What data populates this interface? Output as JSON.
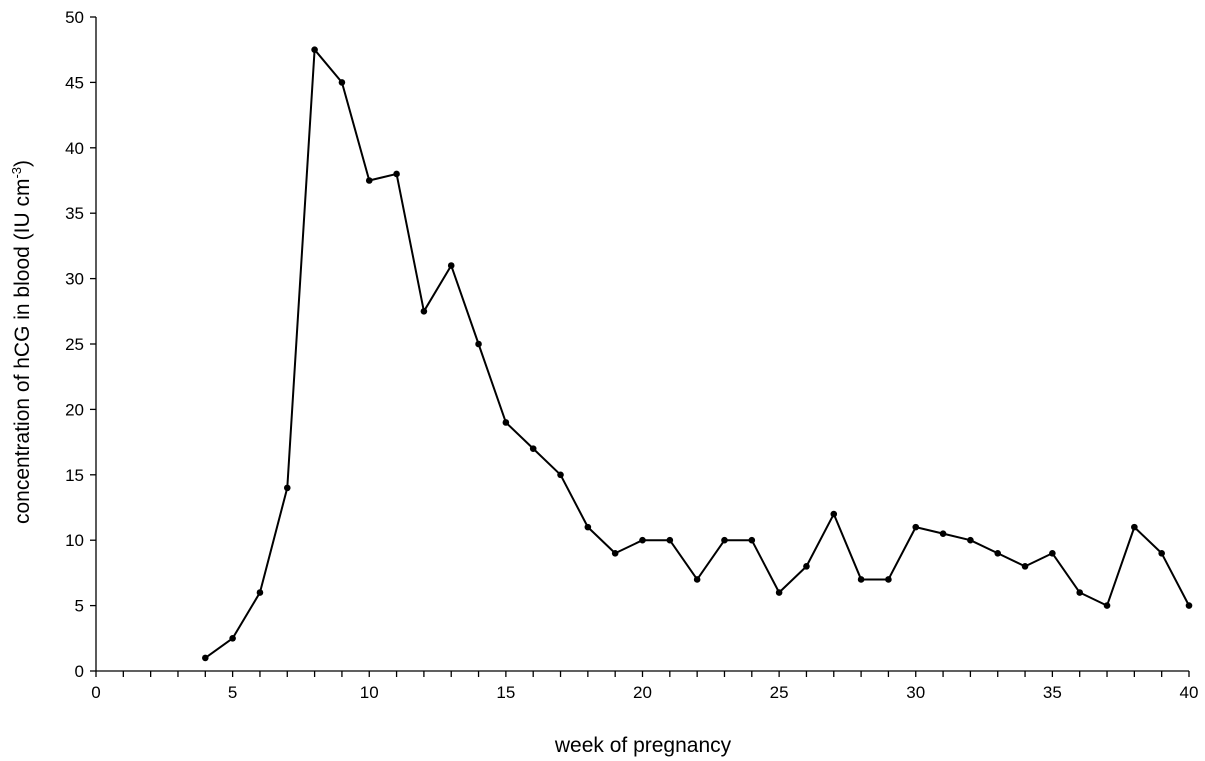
{
  "chart_data": {
    "type": "line",
    "title": "",
    "xlabel": "week of pregnancy",
    "ylabel": {
      "prefix": "concentration of hCG in blood (IU cm",
      "superscript": "-3",
      "suffix": ")"
    },
    "xlim": [
      0,
      40
    ],
    "ylim": [
      0,
      50
    ],
    "x_major_ticks": [
      0,
      5,
      10,
      15,
      20,
      25,
      30,
      35,
      40
    ],
    "x_minor_step": 1,
    "y_ticks": [
      0,
      5,
      10,
      15,
      20,
      25,
      30,
      35,
      40,
      45,
      50
    ],
    "grid": false,
    "legend": "none",
    "line_color": "#000000",
    "marker": "filled-circle",
    "series": [
      {
        "x": [
          4,
          5,
          6,
          7,
          8,
          9,
          10,
          11,
          12,
          13,
          14,
          15,
          16,
          17,
          18,
          19,
          20,
          21,
          22,
          23,
          24,
          25,
          26,
          27,
          28,
          29,
          30,
          31,
          32,
          33,
          34,
          35,
          36,
          37,
          38,
          39,
          40
        ],
        "values": [
          1,
          2.5,
          6,
          14,
          47.5,
          45,
          37.5,
          38,
          27.5,
          31,
          25,
          19,
          17,
          15,
          11,
          9,
          10,
          10,
          7,
          10,
          10,
          6,
          8,
          12,
          7,
          7,
          11,
          10.5,
          10,
          9,
          8,
          9,
          6,
          5,
          11,
          9,
          5
        ]
      }
    ]
  }
}
